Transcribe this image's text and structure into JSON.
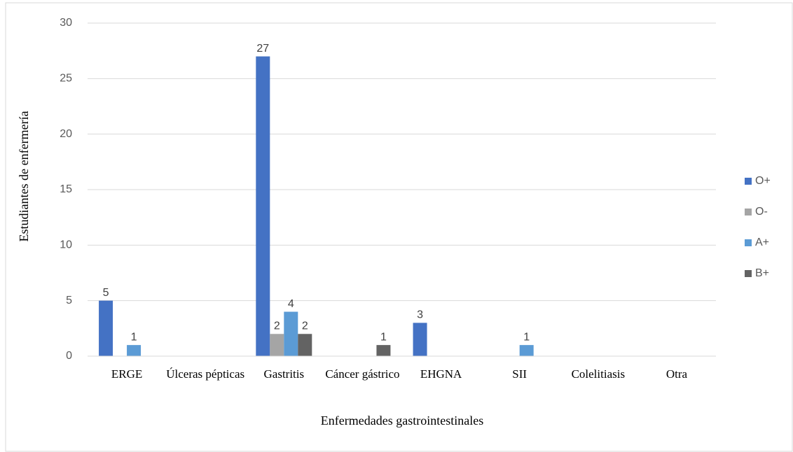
{
  "chart_data": {
    "type": "bar",
    "x_label": "Enfermedades gastrointestinales",
    "y_label": "Estudiantes de enfermería",
    "categories": [
      "ERGE",
      "Úlceras pépticas",
      "Gastritis",
      "Cáncer gástrico",
      "EHGNA",
      "SII",
      "Colelitiasis",
      "Otra"
    ],
    "series": [
      {
        "name": "O+",
        "color": "#4472c4",
        "values": [
          5,
          0,
          27,
          0,
          3,
          0,
          0,
          0
        ]
      },
      {
        "name": "O-",
        "color": "#a5a5a5",
        "values": [
          0,
          0,
          2,
          0,
          0,
          0,
          0,
          0
        ]
      },
      {
        "name": "A+",
        "color": "#5b9bd5",
        "values": [
          1,
          0,
          4,
          0,
          0,
          1,
          0,
          0
        ]
      },
      {
        "name": "B+",
        "color": "#636363",
        "values": [
          0,
          0,
          2,
          1,
          0,
          0,
          0,
          0
        ]
      }
    ],
    "ylim": [
      0,
      30
    ],
    "yticks": [
      0,
      5,
      10,
      15,
      20,
      25,
      30
    ],
    "grid": true,
    "legend": "right"
  }
}
